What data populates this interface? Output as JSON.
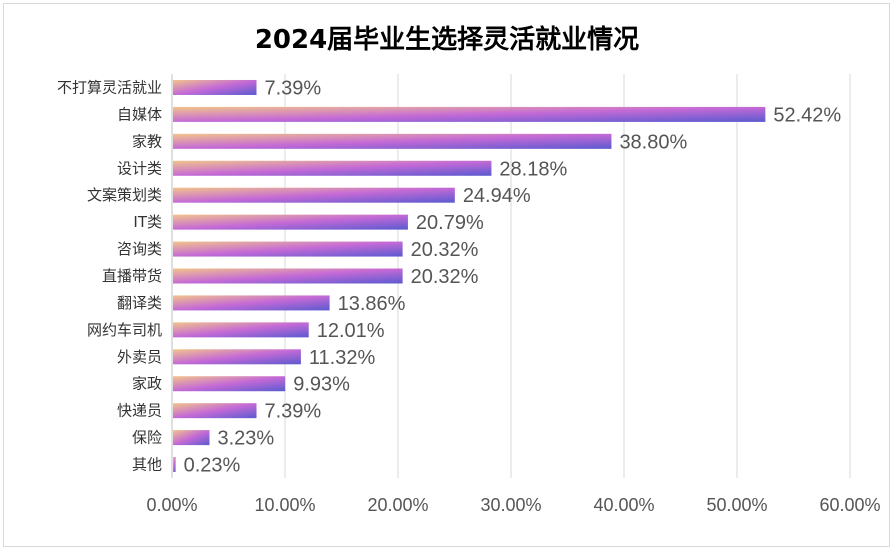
{
  "chart_data": {
    "type": "bar",
    "orientation": "horizontal",
    "title": "2024届毕业生选择灵活就业情况",
    "xlabel": "",
    "ylabel": "",
    "categories": [
      "不打算灵活就业",
      "自媒体",
      "家教",
      "设计类",
      "文案策划类",
      "IT类",
      "咨询类",
      "直播带货",
      "翻译类",
      "网约车司机",
      "外卖员",
      "家政",
      "快递员",
      "保险",
      "其他"
    ],
    "values": [
      7.39,
      52.42,
      38.8,
      28.18,
      24.94,
      20.79,
      20.32,
      20.32,
      13.86,
      12.01,
      11.32,
      9.93,
      7.39,
      3.23,
      0.23
    ],
    "value_labels": [
      "7.39%",
      "52.42%",
      "38.80%",
      "28.18%",
      "24.94%",
      "20.79%",
      "20.32%",
      "20.32%",
      "13.86%",
      "12.01%",
      "11.32%",
      "9.93%",
      "7.39%",
      "3.23%",
      "0.23%"
    ],
    "xlim": [
      0,
      60
    ],
    "xticks": [
      0,
      10,
      20,
      30,
      40,
      50,
      60
    ],
    "xtick_labels": [
      "0.00%",
      "10.00%",
      "20.00%",
      "30.00%",
      "40.00%",
      "50.00%",
      "60.00%"
    ],
    "grid": true,
    "legend": "none",
    "bar_gradient": [
      "#f2c48a",
      "#c56ad6",
      "#5a5ad0"
    ]
  }
}
